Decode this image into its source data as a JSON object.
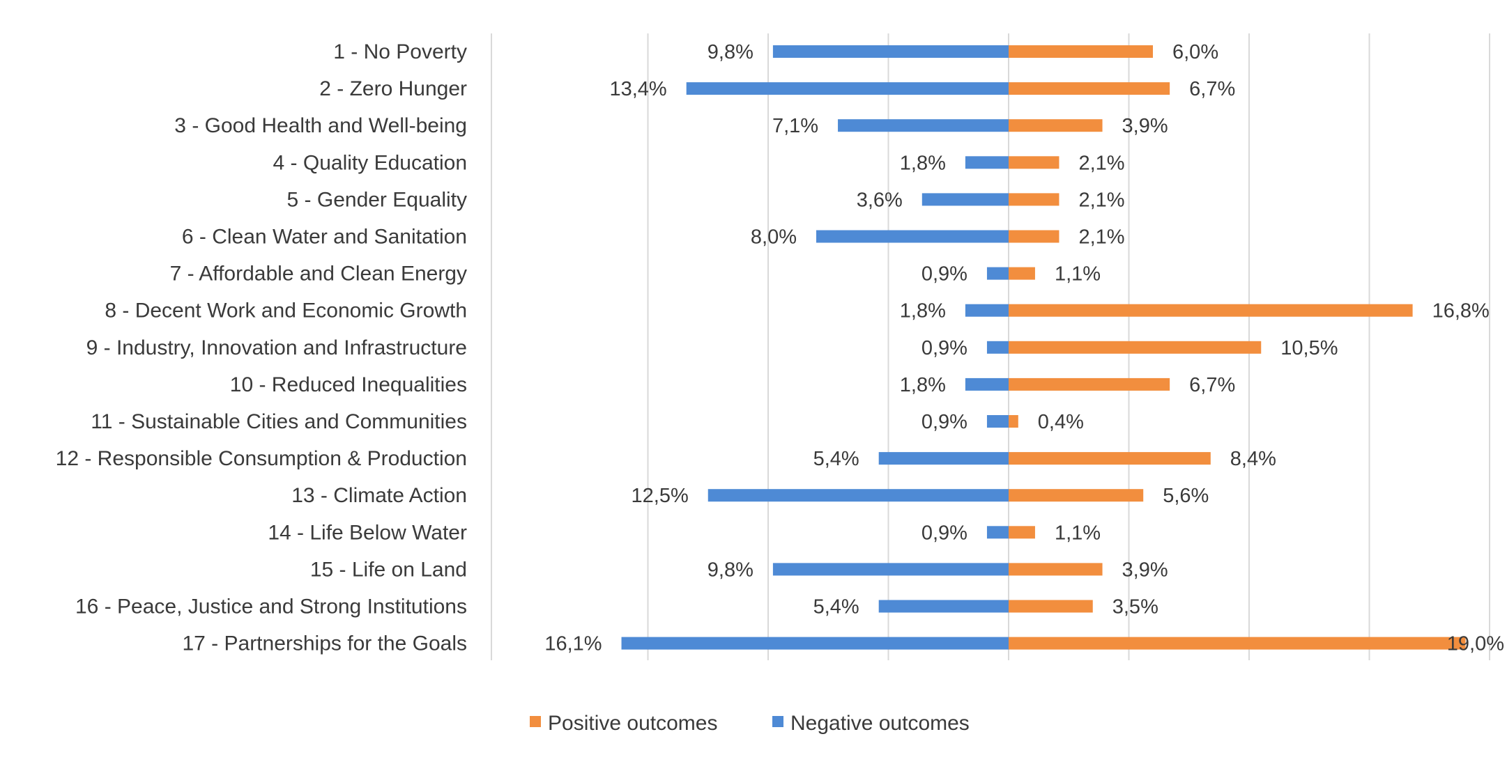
{
  "chart_data": {
    "type": "bar",
    "orientation": "horizontal-diverging",
    "title": "",
    "xlabel": "",
    "ylabel": "",
    "grid": true,
    "legend_position": "bottom",
    "categories": [
      "1 - No Poverty",
      "2 - Zero Hunger",
      "3 - Good Health and Well-being",
      "4 - Quality Education",
      "5 - Gender Equality",
      "6 - Clean Water and Sanitation",
      "7 - Affordable and Clean Energy",
      "8 - Decent Work and Economic Growth",
      "9 - Industry, Innovation and Infrastructure",
      "10 - Reduced Inequalities",
      "11 - Sustainable Cities and Communities",
      "12 - Responsible Consumption & Production",
      "13 - Climate Action",
      "14 - Life Below Water",
      "15 - Life on Land",
      "16 - Peace, Justice and Strong Institutions",
      "17 - Partnerships for the Goals"
    ],
    "series": [
      {
        "name": "Positive outcomes",
        "color": "#F28E3E",
        "values": [
          6.0,
          6.7,
          3.9,
          2.1,
          2.1,
          2.1,
          1.1,
          16.8,
          10.5,
          6.7,
          0.4,
          8.4,
          5.6,
          1.1,
          3.9,
          3.5,
          19.0
        ],
        "labels": [
          "6,0%",
          "6,7%",
          "3,9%",
          "2,1%",
          "2,1%",
          "2,1%",
          "1,1%",
          "16,8%",
          "10,5%",
          "6,7%",
          "0,4%",
          "8,4%",
          "5,6%",
          "1,1%",
          "3,9%",
          "3,5%",
          "19,0%"
        ]
      },
      {
        "name": "Negative outcomes",
        "color": "#4E8AD5",
        "values": [
          9.8,
          13.4,
          7.1,
          1.8,
          3.6,
          8.0,
          0.9,
          1.8,
          0.9,
          1.8,
          0.9,
          5.4,
          12.5,
          0.9,
          9.8,
          5.4,
          16.1
        ],
        "labels": [
          "9,8%",
          "13,4%",
          "7,1%",
          "1,8%",
          "3,6%",
          "8,0%",
          "0,9%",
          "1,8%",
          "0,9%",
          "1,8%",
          "0,9%",
          "5,4%",
          "12,5%",
          "0,9%",
          "9,8%",
          "5,4%",
          "16,1%"
        ]
      }
    ]
  }
}
